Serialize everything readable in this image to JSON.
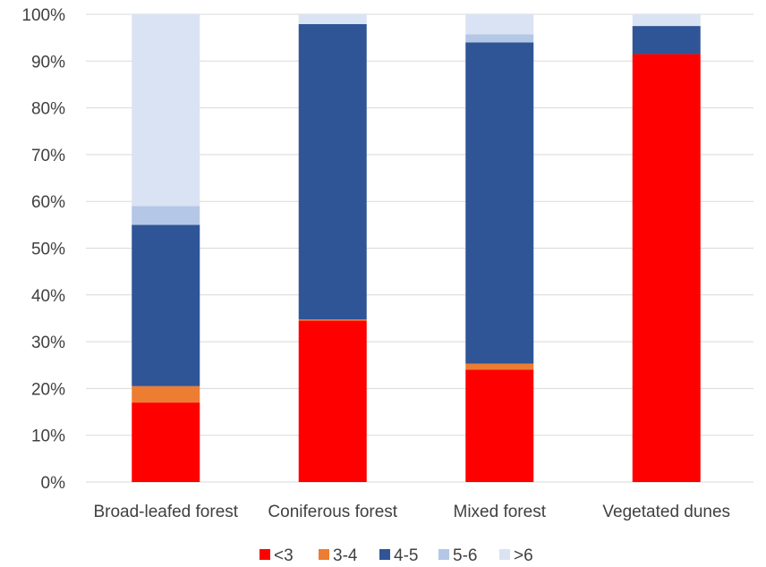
{
  "chart_data": {
    "type": "bar",
    "stacked": true,
    "normalized": true,
    "categories": [
      "Broad-leafed forest",
      "Coniferous forest",
      "Mixed forest",
      "Vegetated dunes"
    ],
    "series": [
      {
        "name": "<3",
        "color": "#ff0000",
        "values": [
          17.0,
          34.5,
          24.0,
          91.5
        ]
      },
      {
        "name": "3-4",
        "color": "#ed7d31",
        "values": [
          3.5,
          0.3,
          1.3,
          0.0
        ]
      },
      {
        "name": "4-5",
        "color": "#2f5597",
        "values": [
          34.5,
          63.1,
          68.7,
          6.0
        ]
      },
      {
        "name": "5-6",
        "color": "#b4c7e7",
        "values": [
          4.0,
          0.0,
          1.7,
          0.0
        ]
      },
      {
        "name": ">6",
        "color": "#dae3f3",
        "values": [
          41.0,
          2.1,
          4.3,
          2.5
        ]
      }
    ],
    "ylim": [
      0,
      100
    ],
    "yticks": [
      "0%",
      "10%",
      "20%",
      "30%",
      "40%",
      "50%",
      "60%",
      "70%",
      "80%",
      "90%",
      "100%"
    ],
    "grid": true,
    "legend_position": "bottom"
  }
}
